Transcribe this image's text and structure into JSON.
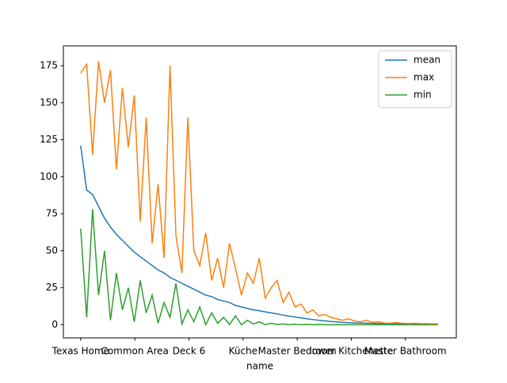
{
  "chart_data": {
    "type": "line",
    "xlabel": "name",
    "x": [
      0,
      11,
      22,
      33,
      44,
      55,
      66,
      77,
      88,
      99,
      110,
      121,
      132,
      143,
      154,
      165,
      176,
      187,
      198,
      209,
      220,
      231,
      242,
      253,
      264,
      275,
      286,
      297,
      308,
      319,
      330,
      341,
      352,
      363,
      374,
      385,
      396,
      407,
      418,
      429,
      440,
      451,
      462,
      473,
      484,
      495,
      506,
      517,
      528,
      539,
      550,
      561,
      572,
      583,
      594,
      605,
      616,
      627,
      638,
      649,
      660
    ],
    "series": [
      {
        "name": "mean",
        "color": "#1f77b4",
        "values": [
          121,
          91,
          88,
          80,
          72,
          66,
          61,
          57,
          53,
          49,
          46,
          43,
          40,
          37,
          35,
          32,
          30,
          28,
          26,
          24,
          22,
          20,
          19,
          17,
          16,
          15,
          13,
          12,
          11,
          10,
          9.5,
          8.7,
          8,
          7.3,
          6.5,
          5.8,
          5.2,
          4.6,
          4,
          3.5,
          3,
          2.6,
          2.2,
          1.9,
          1.6,
          1.4,
          1.2,
          1.1,
          1,
          0.9,
          0.8,
          0.8,
          0.7,
          0.7,
          0.6,
          0.6,
          0.5,
          0.5,
          0.5,
          0.4,
          0.4
        ]
      },
      {
        "name": "max",
        "color": "#ff7f0e",
        "values": [
          170,
          176,
          115,
          178,
          150,
          172,
          105,
          160,
          120,
          155,
          70,
          140,
          55,
          95,
          45,
          175,
          60,
          35,
          140,
          50,
          40,
          62,
          30,
          45,
          25,
          55,
          38,
          20,
          35,
          28,
          45,
          18,
          25,
          30,
          15,
          22,
          12,
          14,
          8,
          10,
          6,
          7,
          5,
          4,
          3,
          4,
          2.5,
          2,
          3,
          1.5,
          2,
          1.2,
          1,
          1.5,
          1,
          0.8,
          1,
          0.8,
          0.7,
          0.6,
          0.5
        ]
      },
      {
        "name": "min",
        "color": "#2ca02c",
        "values": [
          65,
          5,
          78,
          20,
          50,
          3,
          35,
          10,
          25,
          2,
          30,
          8,
          20,
          1,
          15,
          5,
          28,
          0.5,
          10,
          2,
          12,
          0,
          8,
          1,
          5,
          0.2,
          6,
          0,
          3,
          0.5,
          2,
          0,
          1,
          0.2,
          0.5,
          0,
          0.3,
          0,
          0.2,
          0,
          0.1,
          0,
          0,
          0,
          0,
          0,
          0,
          0,
          0,
          0,
          0,
          0,
          0,
          0,
          0,
          0,
          0,
          0,
          0,
          0,
          0
        ]
      }
    ],
    "xlim": [
      -32,
      694
    ],
    "xticks": [
      {
        "value": 0,
        "label": "Texas Home"
      },
      {
        "value": 100,
        "label": "Common Area"
      },
      {
        "value": 200,
        "label": "Deck 6"
      },
      {
        "value": 300,
        "label": "Küche"
      },
      {
        "value": 400,
        "label": "Master Bedroom"
      },
      {
        "value": 500,
        "label": "lower Kitchenette"
      },
      {
        "value": 600,
        "label": "Master Bathroom"
      }
    ],
    "ylim": [
      -8.9,
      188.4
    ],
    "yticks": [
      0,
      25,
      50,
      75,
      100,
      125,
      150,
      175
    ],
    "legend": "upper right"
  }
}
